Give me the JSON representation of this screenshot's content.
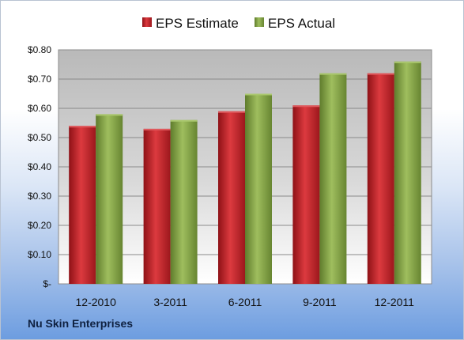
{
  "company": "Nu Skin Enterprises",
  "colors": {
    "estimate": "#c0242a",
    "actual": "#86a74a",
    "plot_top": "#bdbdbd",
    "plot_bottom": "#ffffff",
    "grid": "#8a8a8a"
  },
  "chart_data": {
    "type": "bar",
    "categories": [
      "12-2010",
      "3-2011",
      "6-2011",
      "9-2011",
      "12-2011"
    ],
    "series": [
      {
        "name": "EPS Estimate",
        "values": [
          0.54,
          0.53,
          0.59,
          0.61,
          0.72
        ]
      },
      {
        "name": "EPS Actual",
        "values": [
          0.58,
          0.56,
          0.65,
          0.72,
          0.76
        ]
      }
    ],
    "ylim": [
      0,
      0.8
    ],
    "yticks": [
      0,
      0.1,
      0.2,
      0.3,
      0.4,
      0.5,
      0.6,
      0.7,
      0.8
    ],
    "ytick_labels": [
      "$-",
      "$0.10",
      "$0.20",
      "$0.30",
      "$0.40",
      "$0.50",
      "$0.60",
      "$0.70",
      "$0.80"
    ],
    "grid": true,
    "legend": "top-center"
  }
}
